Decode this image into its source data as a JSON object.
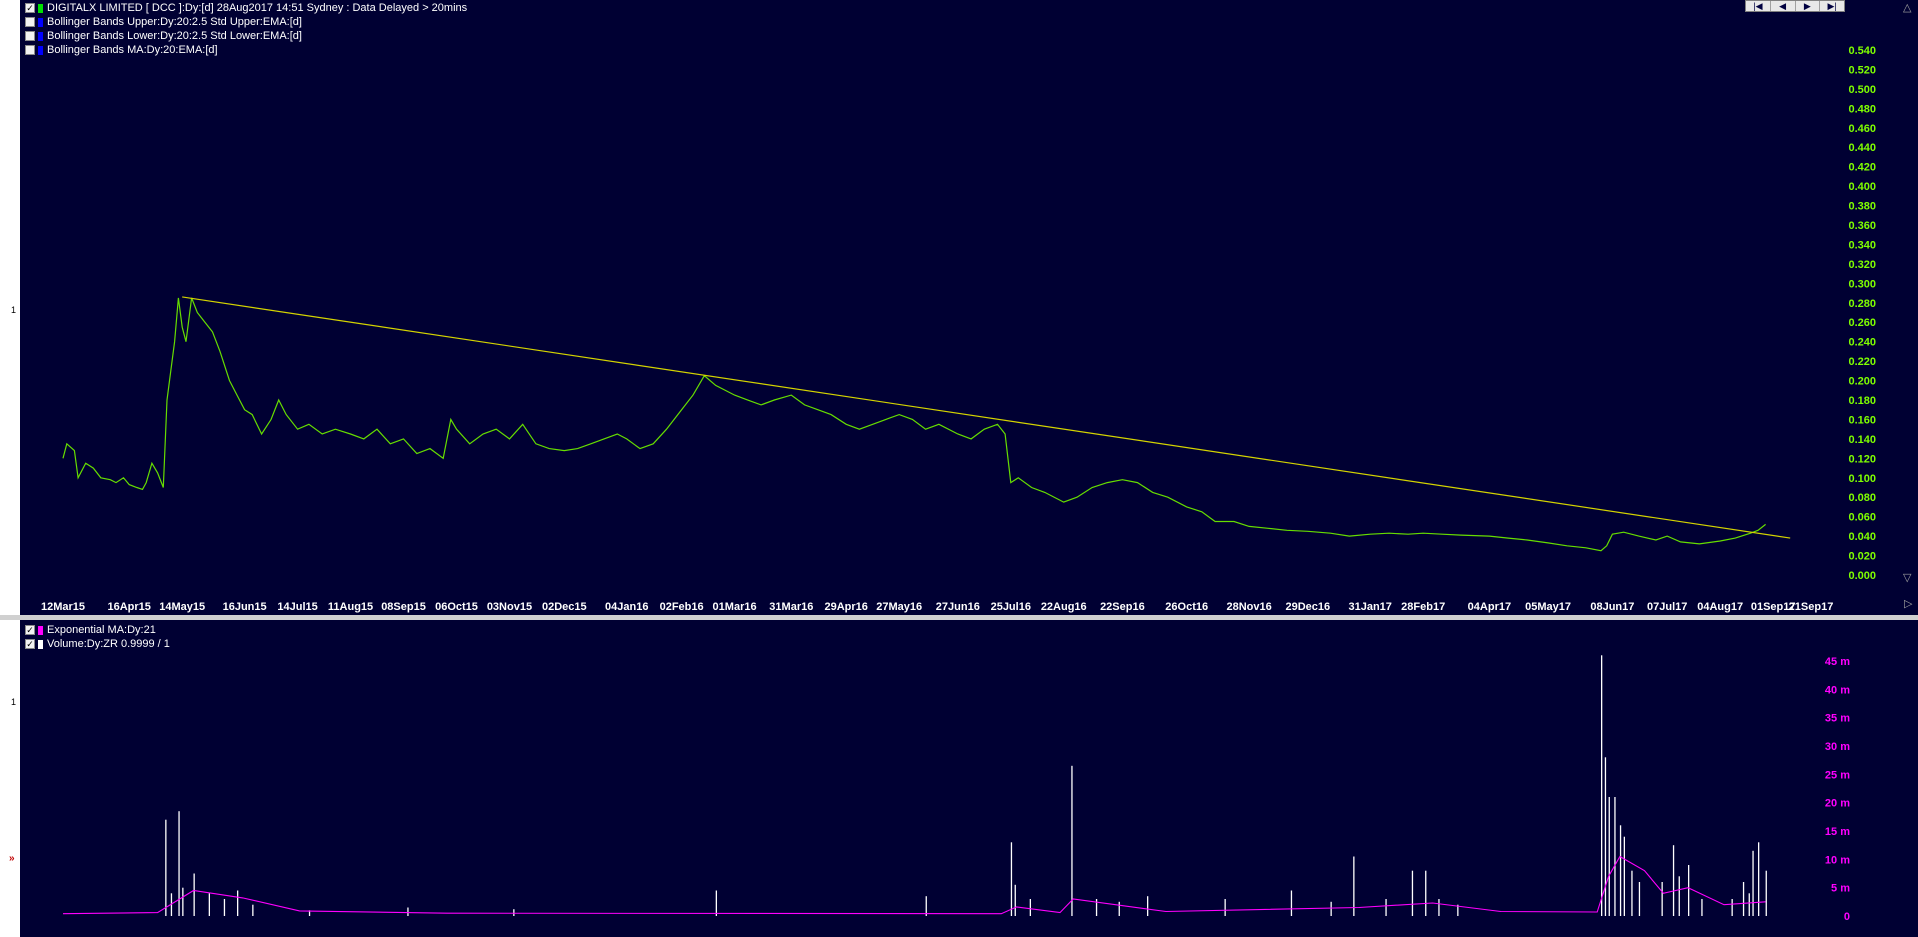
{
  "panels": {
    "price": {
      "legend": [
        {
          "checked": true,
          "swatch": "#00e000",
          "text": "DIGITALX LIMITED [ DCC ]:Dy:[d]  28Aug2017 14:51 Sydney : Data Delayed > 20mins"
        },
        {
          "checked": false,
          "swatch": "#0000ff",
          "text": "Bollinger Bands Upper:Dy:20:2.5 Std Upper:EMA:[d]"
        },
        {
          "checked": false,
          "swatch": "#0000ff",
          "text": "Bollinger Bands Lower:Dy:20:2.5 Std Lower:EMA:[d]"
        },
        {
          "checked": false,
          "swatch": "#0000ff",
          "text": "Bollinger Bands MA:Dy:20:EMA:[d]"
        }
      ],
      "side_label": "1"
    },
    "volume": {
      "legend": [
        {
          "checked": true,
          "swatch": "#ff00ff",
          "text": "Exponential MA:Dy:21"
        },
        {
          "checked": true,
          "swatch": "#ffffff",
          "text": "Volume:Dy:ZR 0.9999 / 1"
        }
      ],
      "side_label": "1",
      "side_arrow": "»"
    }
  },
  "nav": [
    "|◀",
    "◀",
    "▶",
    "▶|"
  ],
  "colors": {
    "background": "#000033",
    "price_line": "#66dd00",
    "trendline": "#d4d400",
    "price_axis": "#7fff00",
    "volume_axis": "#ff00ff",
    "volume_bars": "#ffffff",
    "ema": "#ff00ff",
    "x_labels": "#ffffff"
  },
  "chart_data": [
    {
      "type": "line",
      "series": [
        {
          "name": "DIGITALX LIMITED [ DCC ]",
          "points": [
            [
              "2015-03-12",
              0.12
            ],
            [
              "2015-03-14",
              0.135
            ],
            [
              "2015-03-18",
              0.128
            ],
            [
              "2015-03-20",
              0.1
            ],
            [
              "2015-03-24",
              0.115
            ],
            [
              "2015-03-28",
              0.11
            ],
            [
              "2015-04-01",
              0.1
            ],
            [
              "2015-04-06",
              0.098
            ],
            [
              "2015-04-09",
              0.095
            ],
            [
              "2015-04-13",
              0.1
            ],
            [
              "2015-04-16",
              0.093
            ],
            [
              "2015-04-20",
              0.09
            ],
            [
              "2015-04-23",
              0.088
            ],
            [
              "2015-04-25",
              0.095
            ],
            [
              "2015-04-28",
              0.115
            ],
            [
              "2015-05-01",
              0.105
            ],
            [
              "2015-05-04",
              0.09
            ],
            [
              "2015-05-06",
              0.18
            ],
            [
              "2015-05-08",
              0.21
            ],
            [
              "2015-05-10",
              0.24
            ],
            [
              "2015-05-12",
              0.285
            ],
            [
              "2015-05-14",
              0.255
            ],
            [
              "2015-05-16",
              0.24
            ],
            [
              "2015-05-19",
              0.285
            ],
            [
              "2015-05-22",
              0.27
            ],
            [
              "2015-05-26",
              0.26
            ],
            [
              "2015-05-30",
              0.25
            ],
            [
              "2015-06-03",
              0.23
            ],
            [
              "2015-06-08",
              0.2
            ],
            [
              "2015-06-12",
              0.185
            ],
            [
              "2015-06-16",
              0.17
            ],
            [
              "2015-06-20",
              0.165
            ],
            [
              "2015-06-25",
              0.145
            ],
            [
              "2015-06-30",
              0.16
            ],
            [
              "2015-07-04",
              0.18
            ],
            [
              "2015-07-08",
              0.165
            ],
            [
              "2015-07-14",
              0.15
            ],
            [
              "2015-07-20",
              0.155
            ],
            [
              "2015-07-27",
              0.145
            ],
            [
              "2015-08-03",
              0.15
            ],
            [
              "2015-08-11",
              0.145
            ],
            [
              "2015-08-18",
              0.14
            ],
            [
              "2015-08-25",
              0.15
            ],
            [
              "2015-09-01",
              0.135
            ],
            [
              "2015-09-08",
              0.14
            ],
            [
              "2015-09-15",
              0.125
            ],
            [
              "2015-09-22",
              0.13
            ],
            [
              "2015-09-29",
              0.12
            ],
            [
              "2015-10-03",
              0.16
            ],
            [
              "2015-10-06",
              0.15
            ],
            [
              "2015-10-13",
              0.135
            ],
            [
              "2015-10-20",
              0.145
            ],
            [
              "2015-10-27",
              0.15
            ],
            [
              "2015-11-03",
              0.14
            ],
            [
              "2015-11-10",
              0.155
            ],
            [
              "2015-11-17",
              0.135
            ],
            [
              "2015-11-24",
              0.13
            ],
            [
              "2015-12-02",
              0.128
            ],
            [
              "2015-12-09",
              0.13
            ],
            [
              "2015-12-16",
              0.135
            ],
            [
              "2015-12-23",
              0.14
            ],
            [
              "2015-12-30",
              0.145
            ],
            [
              "2016-01-04",
              0.14
            ],
            [
              "2016-01-11",
              0.13
            ],
            [
              "2016-01-18",
              0.135
            ],
            [
              "2016-01-25",
              0.15
            ],
            [
              "2016-02-02",
              0.17
            ],
            [
              "2016-02-08",
              0.185
            ],
            [
              "2016-02-14",
              0.205
            ],
            [
              "2016-02-20",
              0.195
            ],
            [
              "2016-03-01",
              0.185
            ],
            [
              "2016-03-08",
              0.18
            ],
            [
              "2016-03-15",
              0.175
            ],
            [
              "2016-03-22",
              0.18
            ],
            [
              "2016-03-31",
              0.185
            ],
            [
              "2016-04-07",
              0.175
            ],
            [
              "2016-04-14",
              0.17
            ],
            [
              "2016-04-21",
              0.165
            ],
            [
              "2016-04-29",
              0.155
            ],
            [
              "2016-05-06",
              0.15
            ],
            [
              "2016-05-13",
              0.155
            ],
            [
              "2016-05-20",
              0.16
            ],
            [
              "2016-05-27",
              0.165
            ],
            [
              "2016-06-03",
              0.16
            ],
            [
              "2016-06-10",
              0.15
            ],
            [
              "2016-06-17",
              0.155
            ],
            [
              "2016-06-27",
              0.145
            ],
            [
              "2016-07-04",
              0.14
            ],
            [
              "2016-07-11",
              0.15
            ],
            [
              "2016-07-18",
              0.155
            ],
            [
              "2016-07-22",
              0.145
            ],
            [
              "2016-07-25",
              0.095
            ],
            [
              "2016-07-29",
              0.1
            ],
            [
              "2016-08-05",
              0.09
            ],
            [
              "2016-08-12",
              0.085
            ],
            [
              "2016-08-22",
              0.075
            ],
            [
              "2016-08-29",
              0.08
            ],
            [
              "2016-09-06",
              0.09
            ],
            [
              "2016-09-14",
              0.095
            ],
            [
              "2016-09-22",
              0.098
            ],
            [
              "2016-09-30",
              0.095
            ],
            [
              "2016-10-08",
              0.085
            ],
            [
              "2016-10-16",
              0.08
            ],
            [
              "2016-10-26",
              0.07
            ],
            [
              "2016-11-03",
              0.065
            ],
            [
              "2016-11-10",
              0.055
            ],
            [
              "2016-11-20",
              0.055
            ],
            [
              "2016-11-28",
              0.05
            ],
            [
              "2016-12-08",
              0.048
            ],
            [
              "2016-12-18",
              0.046
            ],
            [
              "2016-12-29",
              0.045
            ],
            [
              "2017-01-10",
              0.043
            ],
            [
              "2017-01-20",
              0.04
            ],
            [
              "2017-01-31",
              0.042
            ],
            [
              "2017-02-10",
              0.043
            ],
            [
              "2017-02-20",
              0.042
            ],
            [
              "2017-02-28",
              0.043
            ],
            [
              "2017-03-10",
              0.042
            ],
            [
              "2017-03-20",
              0.041
            ],
            [
              "2017-04-04",
              0.04
            ],
            [
              "2017-04-14",
              0.038
            ],
            [
              "2017-04-24",
              0.036
            ],
            [
              "2017-05-05",
              0.033
            ],
            [
              "2017-05-15",
              0.03
            ],
            [
              "2017-05-25",
              0.028
            ],
            [
              "2017-06-02",
              0.025
            ],
            [
              "2017-06-05",
              0.03
            ],
            [
              "2017-06-08",
              0.042
            ],
            [
              "2017-06-14",
              0.044
            ],
            [
              "2017-06-22",
              0.04
            ],
            [
              "2017-07-01",
              0.036
            ],
            [
              "2017-07-07",
              0.04
            ],
            [
              "2017-07-14",
              0.034
            ],
            [
              "2017-07-24",
              0.032
            ],
            [
              "2017-08-04",
              0.035
            ],
            [
              "2017-08-12",
              0.038
            ],
            [
              "2017-08-20",
              0.043
            ],
            [
              "2017-08-24",
              0.046
            ],
            [
              "2017-08-28",
              0.052
            ]
          ]
        },
        {
          "name": "Trendline",
          "points": [
            [
              "2015-05-14",
              0.286
            ],
            [
              "2017-09-10",
              0.038
            ]
          ]
        }
      ],
      "x_ticks": [
        "12Mar15",
        "16Apr15",
        "14May15",
        "16Jun15",
        "14Jul15",
        "11Aug15",
        "08Sep15",
        "06Oct15",
        "03Nov15",
        "02Dec15",
        "04Jan16",
        "02Feb16",
        "01Mar16",
        "31Mar16",
        "29Apr16",
        "27May16",
        "27Jun16",
        "25Jul16",
        "22Aug16",
        "22Sep16",
        "26Oct16",
        "28Nov16",
        "29Dec16",
        "31Jan17",
        "28Feb17",
        "04Apr17",
        "05May17",
        "08Jun17",
        "07Jul17",
        "04Aug17",
        "01Sep17",
        "21Sep17"
      ],
      "y_ticks": [
        "0.000",
        "0.020",
        "0.040",
        "0.060",
        "0.080",
        "0.100",
        "0.120",
        "0.140",
        "0.160",
        "0.180",
        "0.200",
        "0.220",
        "0.240",
        "0.260",
        "0.280",
        "0.300",
        "0.320",
        "0.340",
        "0.360",
        "0.380",
        "0.400",
        "0.420",
        "0.440",
        "0.460",
        "0.480",
        "0.500",
        "0.520",
        "0.540"
      ],
      "ylim": [
        0,
        0.54
      ],
      "grid": false
    },
    {
      "type": "bar",
      "series": [
        {
          "name": "Volume:Dy:ZR 0.9999 / 1",
          "values": [
            [
              "2015-05-05",
              17
            ],
            [
              "2015-05-08",
              4
            ],
            [
              "2015-05-12",
              18.5
            ],
            [
              "2015-05-14",
              5
            ],
            [
              "2015-05-20",
              7.5
            ],
            [
              "2015-05-28",
              4
            ],
            [
              "2015-06-05",
              3
            ],
            [
              "2015-06-12",
              4.5
            ],
            [
              "2015-06-20",
              2
            ],
            [
              "2015-07-20",
              1
            ],
            [
              "2015-09-10",
              1.5
            ],
            [
              "2015-11-05",
              1.2
            ],
            [
              "2016-02-20",
              4.5
            ],
            [
              "2016-06-10",
              3.5
            ],
            [
              "2016-07-25",
              13
            ],
            [
              "2016-07-27",
              5.5
            ],
            [
              "2016-08-04",
              3
            ],
            [
              "2016-08-26",
              26.5
            ],
            [
              "2016-09-08",
              3
            ],
            [
              "2016-09-20",
              2.5
            ],
            [
              "2016-10-05",
              3.5
            ],
            [
              "2016-11-15",
              3
            ],
            [
              "2016-12-20",
              4.5
            ],
            [
              "2017-01-10",
              2.5
            ],
            [
              "2017-01-22",
              10.5
            ],
            [
              "2017-02-08",
              3
            ],
            [
              "2017-02-22",
              8
            ],
            [
              "2017-03-01",
              8
            ],
            [
              "2017-03-08",
              3
            ],
            [
              "2017-03-18",
              2
            ],
            [
              "2017-06-02",
              46
            ],
            [
              "2017-06-04",
              28
            ],
            [
              "2017-06-06",
              21
            ],
            [
              "2017-06-09",
              21
            ],
            [
              "2017-06-12",
              16
            ],
            [
              "2017-06-14",
              14
            ],
            [
              "2017-06-18",
              8
            ],
            [
              "2017-06-22",
              6
            ],
            [
              "2017-07-04",
              6
            ],
            [
              "2017-07-10",
              12.5
            ],
            [
              "2017-07-13",
              7
            ],
            [
              "2017-07-18",
              9
            ],
            [
              "2017-07-25",
              3
            ],
            [
              "2017-08-10",
              3
            ],
            [
              "2017-08-16",
              6
            ],
            [
              "2017-08-19",
              4
            ],
            [
              "2017-08-21",
              11.5
            ],
            [
              "2017-08-24",
              13
            ],
            [
              "2017-08-28",
              8
            ]
          ]
        },
        {
          "name": "Exponential MA:Dy:21",
          "points": [
            [
              "2015-03-12",
              0.4
            ],
            [
              "2015-05-01",
              0.6
            ],
            [
              "2015-05-20",
              4.5
            ],
            [
              "2015-06-15",
              3.2
            ],
            [
              "2015-07-15",
              0.9
            ],
            [
              "2015-10-01",
              0.5
            ],
            [
              "2016-07-20",
              0.4
            ],
            [
              "2016-07-28",
              1.6
            ],
            [
              "2016-08-20",
              0.6
            ],
            [
              "2016-08-27",
              3
            ],
            [
              "2016-10-15",
              0.8
            ],
            [
              "2017-01-25",
              1.5
            ],
            [
              "2017-03-05",
              2.3
            ],
            [
              "2017-04-10",
              0.8
            ],
            [
              "2017-05-31",
              0.7
            ],
            [
              "2017-06-06",
              7
            ],
            [
              "2017-06-12",
              10.5
            ],
            [
              "2017-06-25",
              8
            ],
            [
              "2017-07-05",
              4
            ],
            [
              "2017-07-18",
              5
            ],
            [
              "2017-08-06",
              2
            ],
            [
              "2017-08-28",
              2.5
            ]
          ]
        }
      ],
      "y_ticks": [
        "0",
        "5 m",
        "10 m",
        "15 m",
        "20 m",
        "25 m",
        "30 m",
        "35 m",
        "40 m",
        "45 m"
      ],
      "ylim": [
        0,
        45
      ],
      "unit": "millions",
      "grid": false
    }
  ]
}
